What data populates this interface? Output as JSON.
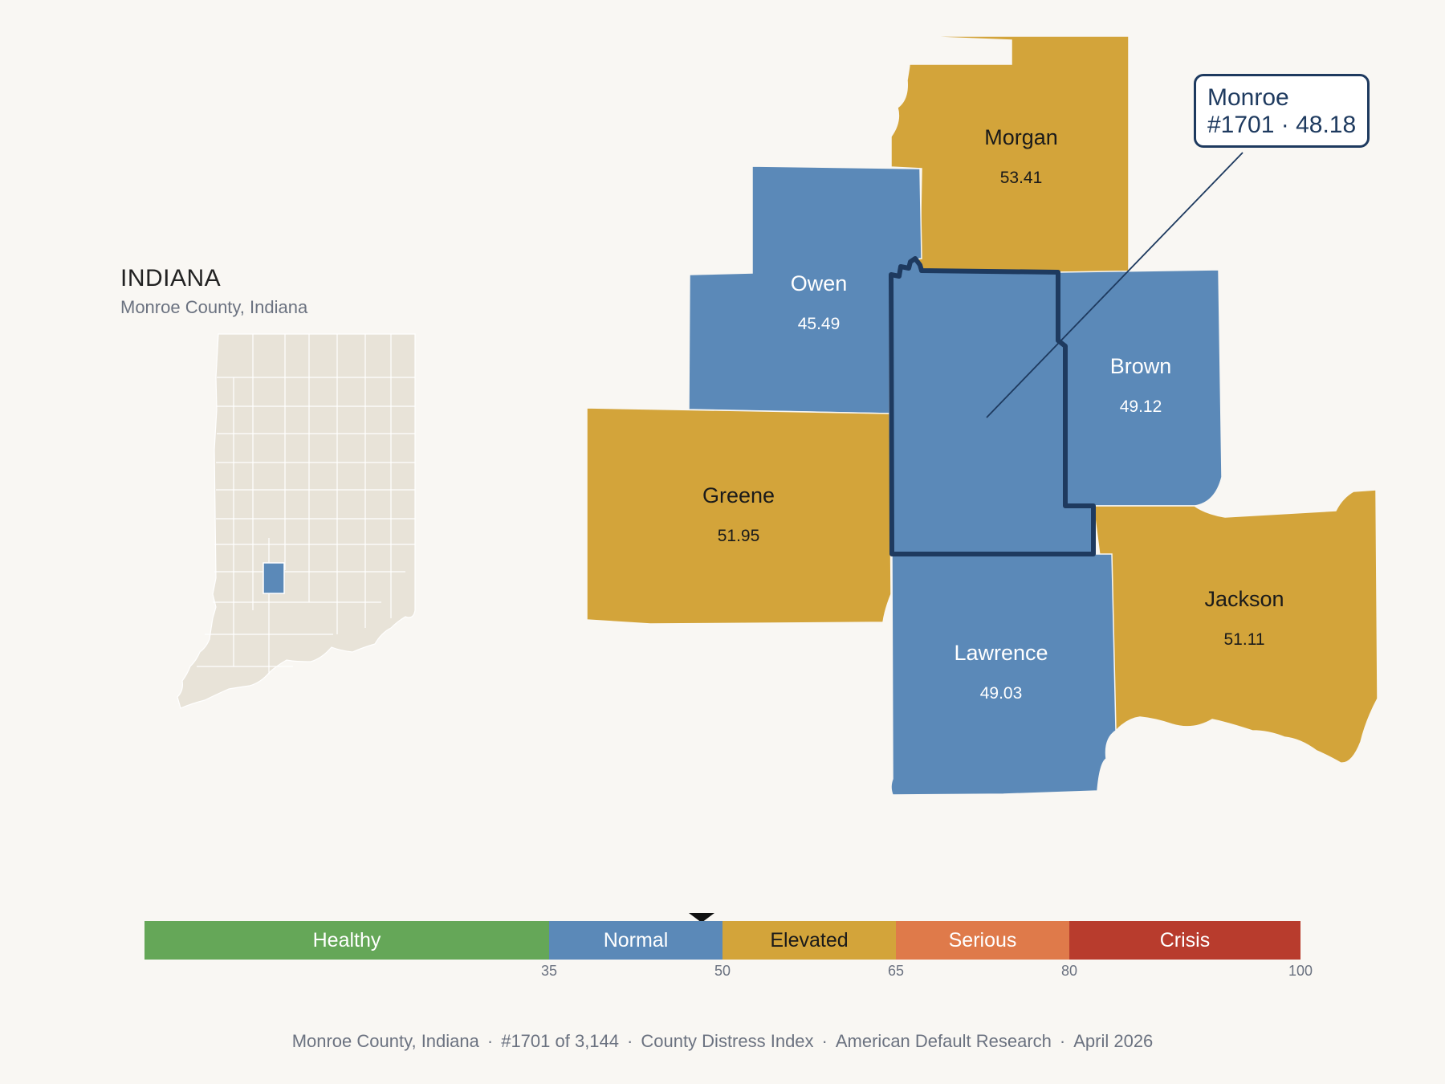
{
  "header": {
    "state_title": "INDIANA",
    "subtitle": "Monroe County, Indiana"
  },
  "colors": {
    "normal": "#5b89b8",
    "elevated": "#d3a43a",
    "outline": "#1e3a5f",
    "state_fill": "#e8e3d8",
    "background": "#f9f7f3"
  },
  "counties": [
    {
      "name": "Morgan",
      "value": "53.41",
      "category": "elevated"
    },
    {
      "name": "Owen",
      "value": "45.49",
      "category": "normal"
    },
    {
      "name": "Brown",
      "value": "49.12",
      "category": "normal"
    },
    {
      "name": "Greene",
      "value": "51.95",
      "category": "elevated"
    },
    {
      "name": "Jackson",
      "value": "51.11",
      "category": "elevated"
    },
    {
      "name": "Lawrence",
      "value": "49.03",
      "category": "normal"
    }
  ],
  "focus": {
    "name": "Monroe",
    "rank": "#1701",
    "score": 48.18,
    "callout_line1": "Monroe",
    "callout_line2": "#1701 · 48.18"
  },
  "scale": {
    "bands": [
      {
        "label": "Healthy",
        "from": 0,
        "to": 35,
        "color": "#65a758",
        "text_color": "#ffffff"
      },
      {
        "label": "Normal",
        "from": 35,
        "to": 50,
        "color": "#5b89b8",
        "text_color": "#ffffff"
      },
      {
        "label": "Elevated",
        "from": 50,
        "to": 65,
        "color": "#d3a43a",
        "text_color": "#1a1a1a"
      },
      {
        "label": "Serious",
        "from": 65,
        "to": 80,
        "color": "#df7a4a",
        "text_color": "#ffffff"
      },
      {
        "label": "Crisis",
        "from": 80,
        "to": 100,
        "color": "#b83c2d",
        "text_color": "#ffffff"
      }
    ],
    "ticks": [
      "35",
      "50",
      "65",
      "80",
      "100"
    ],
    "marker_value": 48.18
  },
  "footer": {
    "parts": [
      "Monroe County, Indiana",
      "#1701 of 3,144",
      "County Distress Index",
      "American Default Research",
      "April 2026"
    ],
    "separator": "·"
  }
}
